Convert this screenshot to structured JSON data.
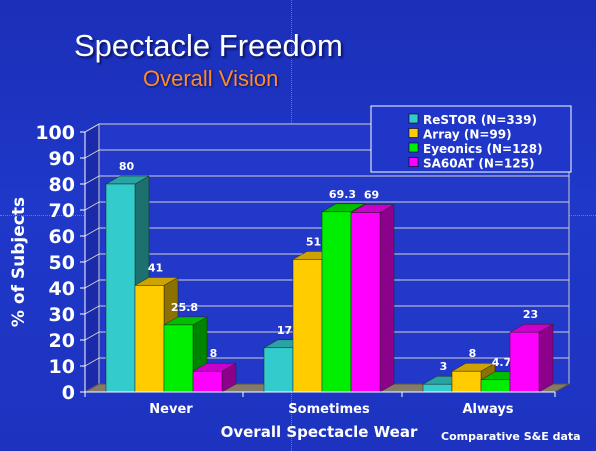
{
  "slide": {
    "title": "Spectacle Freedom",
    "subtitle": "Overall Vision",
    "footnote": "Comparative S&E data"
  },
  "chart_data": {
    "type": "bar",
    "style": "3d",
    "categories": [
      "Never",
      "Sometimes",
      "Always"
    ],
    "series": [
      {
        "name": "ReSTOR (N=339)",
        "color": "#33cccc",
        "values": [
          80,
          17,
          3
        ],
        "labels": [
          "80",
          "17",
          "3"
        ]
      },
      {
        "name": "Array (N=99)",
        "color": "#ffcc00",
        "values": [
          41,
          51,
          8
        ],
        "labels": [
          "41",
          "51",
          "8"
        ]
      },
      {
        "name": "Eyeonics (N=128)",
        "color": "#00ee00",
        "values": [
          25.8,
          69.3,
          4.7
        ],
        "labels": [
          "25.8",
          "69.3",
          "4.7"
        ]
      },
      {
        "name": "SA60AT (N=125)",
        "color": "#ff00ff",
        "values": [
          8,
          69,
          23
        ],
        "labels": [
          "8",
          "69",
          "23"
        ]
      }
    ],
    "xlabel": "Overall Spectacle Wear",
    "ylabel": "% of Subjects",
    "ylim": [
      0,
      100
    ],
    "yticks": [
      "0",
      "10",
      "20",
      "30",
      "40",
      "50",
      "60",
      "70",
      "80",
      "90",
      "100"
    ],
    "grid": true,
    "legend_position": "top-right"
  }
}
